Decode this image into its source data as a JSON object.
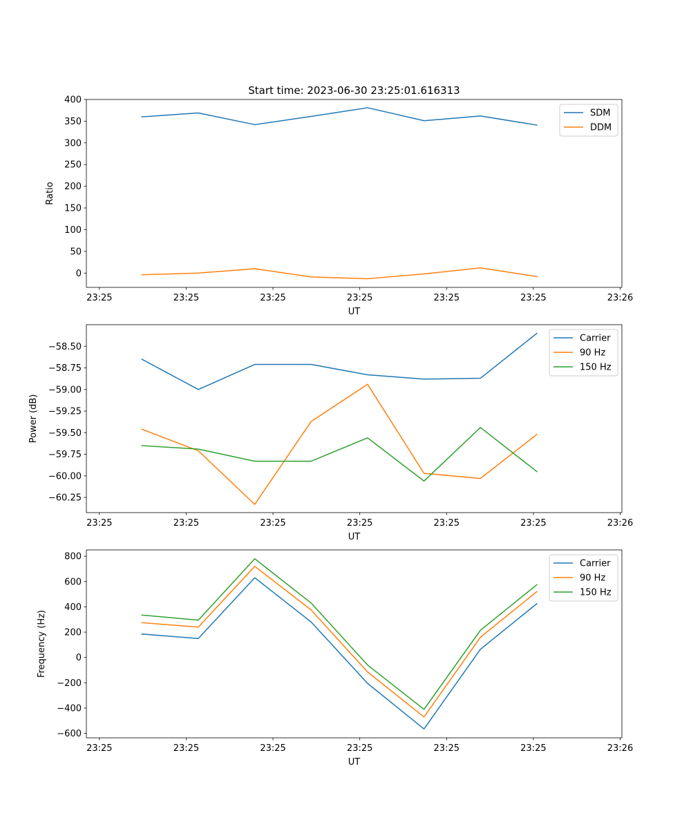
{
  "figure": {
    "title": "Start time: 2023-06-30 23:25:01.616313"
  },
  "chart_data": [
    {
      "type": "line",
      "title": "Start time: 2023-06-30 23:25:01.616313",
      "xlabel": "UT",
      "ylabel": "Ratio",
      "x_tick_labels": [
        "23:25",
        "23:25",
        "23:25",
        "23:25",
        "23:25",
        "23:25",
        "23:26"
      ],
      "x_ticks": [
        0,
        1,
        2,
        3,
        4,
        5,
        6
      ],
      "xlim": [
        -0.15,
        6.02
      ],
      "x": [
        0.49,
        1.14,
        1.79,
        2.44,
        3.09,
        3.74,
        4.39,
        5.04
      ],
      "ylim": [
        -33,
        400
      ],
      "y_ticks": [
        0,
        50,
        100,
        150,
        200,
        250,
        300,
        350,
        400
      ],
      "legend_position": "top-right",
      "grid": false,
      "series": [
        {
          "name": "SDM",
          "color": "#1f77b4",
          "values": [
            360,
            369,
            342,
            361,
            381,
            351,
            362,
            341
          ]
        },
        {
          "name": "DDM",
          "color": "#ff7f0e",
          "values": [
            -4,
            0,
            10,
            -9,
            -13,
            -2,
            12,
            -8
          ]
        }
      ]
    },
    {
      "type": "line",
      "title": "",
      "xlabel": "UT",
      "ylabel": "Power (dB)",
      "x_tick_labels": [
        "23:25",
        "23:25",
        "23:25",
        "23:25",
        "23:25",
        "23:25",
        "23:26"
      ],
      "x_ticks": [
        0,
        1,
        2,
        3,
        4,
        5,
        6
      ],
      "xlim": [
        -0.15,
        6.02
      ],
      "x": [
        0.49,
        1.14,
        1.79,
        2.44,
        3.09,
        3.74,
        4.39,
        5.04
      ],
      "ylim": [
        -60.425,
        -58.25
      ],
      "y_ticks": [
        -58.5,
        -58.75,
        -59.0,
        -59.25,
        -59.5,
        -59.75,
        -60.0,
        -60.25
      ],
      "y_tick_labels": [
        "−58.50",
        "−58.75",
        "−59.00",
        "−59.25",
        "−59.50",
        "−59.75",
        "−60.00",
        "−60.25"
      ],
      "legend_position": "top-right",
      "grid": false,
      "series": [
        {
          "name": "Carrier",
          "color": "#1f77b4",
          "values": [
            -58.65,
            -59.0,
            -58.71,
            -58.71,
            -58.83,
            -58.88,
            -58.87,
            -58.35
          ]
        },
        {
          "name": "90 Hz",
          "color": "#ff7f0e",
          "values": [
            -59.46,
            -59.71,
            -60.33,
            -59.37,
            -58.94,
            -59.97,
            -60.03,
            -59.52
          ]
        },
        {
          "name": "150 Hz",
          "color": "#2ca02c",
          "values": [
            -59.65,
            -59.69,
            -59.83,
            -59.83,
            -59.56,
            -60.06,
            -59.44,
            -59.95
          ]
        }
      ]
    },
    {
      "type": "line",
      "title": "",
      "xlabel": "UT",
      "ylabel": "Frequency (Hz)",
      "x_tick_labels": [
        "23:25",
        "23:25",
        "23:25",
        "23:25",
        "23:25",
        "23:25",
        "23:26"
      ],
      "x_ticks": [
        0,
        1,
        2,
        3,
        4,
        5,
        6
      ],
      "xlim": [
        -0.15,
        6.02
      ],
      "x": [
        0.49,
        1.14,
        1.79,
        2.44,
        3.09,
        3.74,
        4.39,
        5.04
      ],
      "ylim": [
        -635,
        850
      ],
      "y_ticks": [
        800,
        600,
        400,
        200,
        0,
        -200,
        -400,
        -600
      ],
      "y_tick_labels": [
        "800",
        "600",
        "400",
        "200",
        "0",
        "−200",
        "−400",
        "−600"
      ],
      "legend_position": "top-right",
      "grid": false,
      "series": [
        {
          "name": "Carrier",
          "color": "#1f77b4",
          "values": [
            185,
            150,
            630,
            280,
            -205,
            -565,
            65,
            425
          ]
        },
        {
          "name": "90 Hz",
          "color": "#ff7f0e",
          "values": [
            275,
            240,
            720,
            375,
            -115,
            -470,
            160,
            520
          ]
        },
        {
          "name": "150 Hz",
          "color": "#2ca02c",
          "values": [
            335,
            295,
            780,
            430,
            -60,
            -410,
            215,
            575
          ]
        }
      ]
    }
  ]
}
